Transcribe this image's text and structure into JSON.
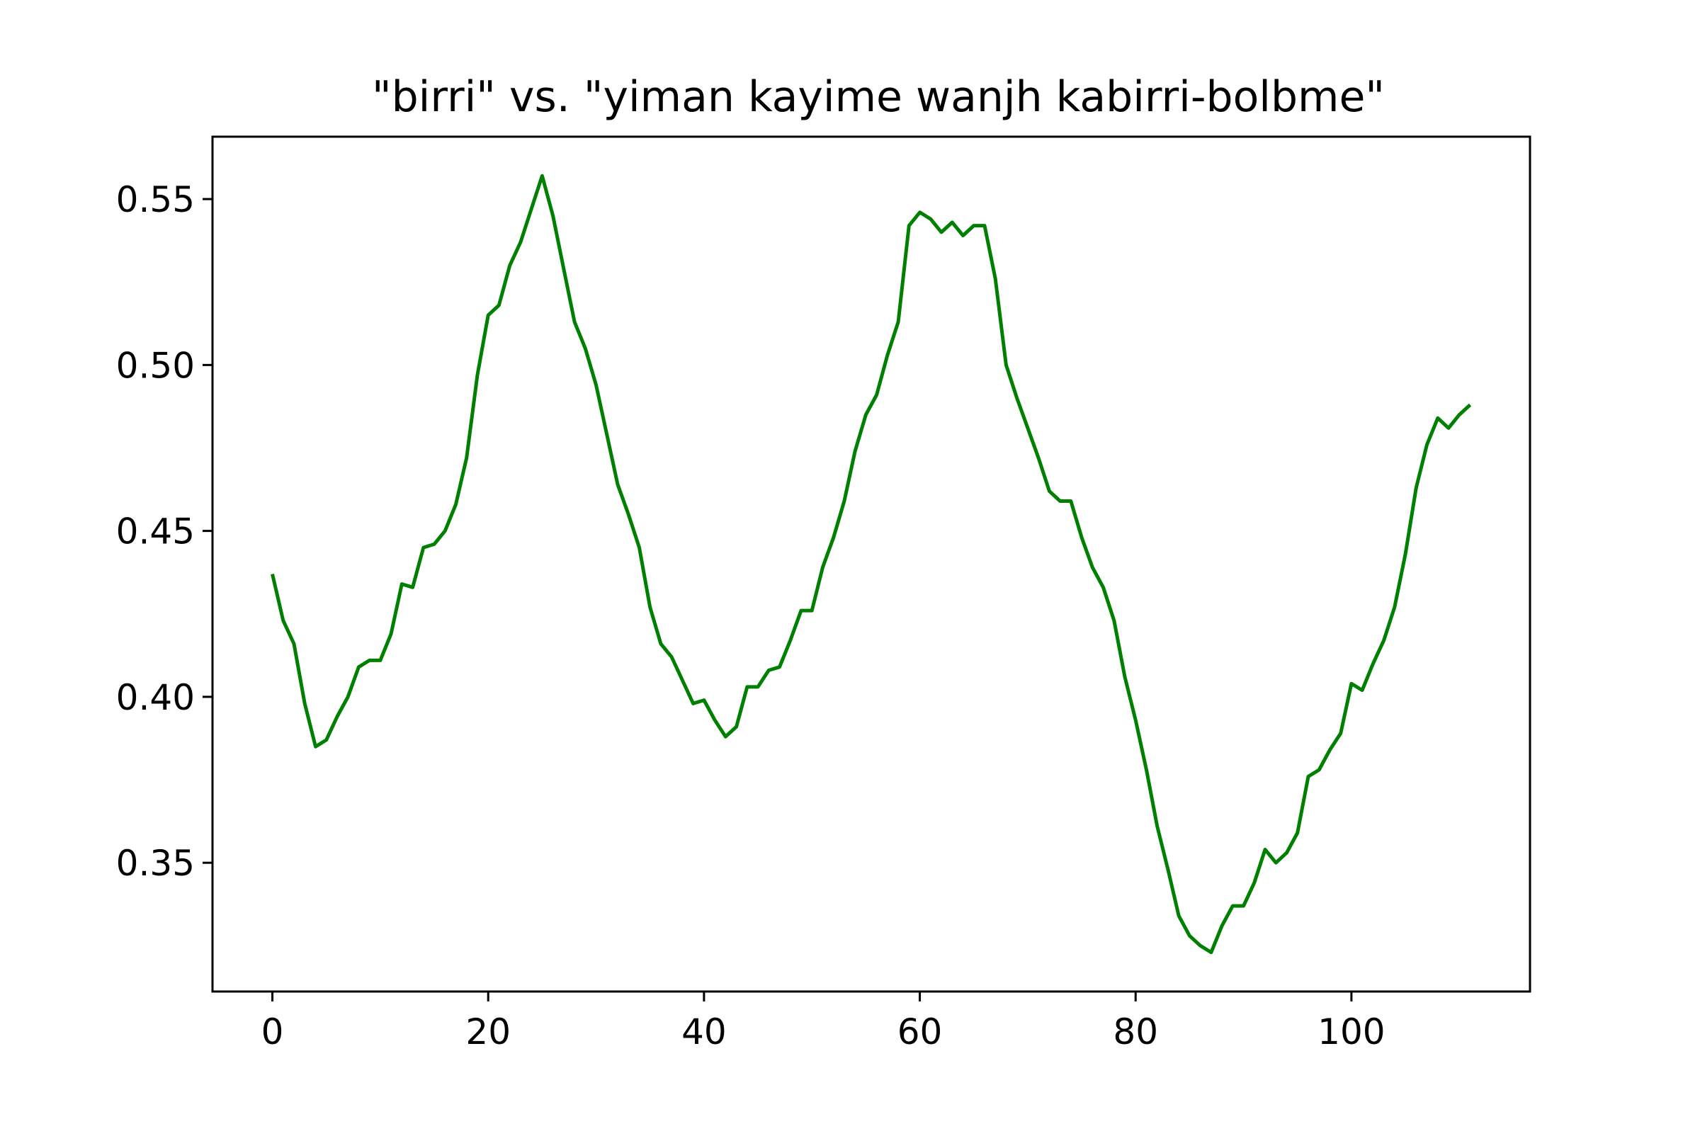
{
  "chart_data": {
    "type": "line",
    "title": "\"birri\" vs. \"yiman kayime wanjh kabirri-bolbme\"",
    "xlabel": "",
    "ylabel": "",
    "xlim": [
      -5.55,
      116.55
    ],
    "ylim": [
      0.3112,
      0.5688
    ],
    "x_ticks": [
      0,
      20,
      40,
      60,
      80,
      100
    ],
    "y_ticks": [
      0.35,
      0.4,
      0.45,
      0.5,
      0.55
    ],
    "x_tick_labels": [
      "0",
      "20",
      "40",
      "60",
      "80",
      "100"
    ],
    "y_tick_labels": [
      "0.35",
      "0.40",
      "0.45",
      "0.50",
      "0.55"
    ],
    "grid": false,
    "legend": "none",
    "series": [
      {
        "color": "#008000",
        "x": [
          0,
          1,
          2,
          3,
          4,
          5,
          6,
          7,
          8,
          9,
          10,
          11,
          12,
          13,
          14,
          15,
          16,
          17,
          18,
          19,
          20,
          21,
          22,
          23,
          24,
          25,
          26,
          27,
          28,
          29,
          30,
          31,
          32,
          33,
          34,
          35,
          36,
          37,
          38,
          39,
          40,
          41,
          42,
          43,
          44,
          45,
          46,
          47,
          48,
          49,
          50,
          51,
          52,
          53,
          54,
          55,
          56,
          57,
          58,
          59,
          60,
          61,
          62,
          63,
          64,
          65,
          66,
          67,
          68,
          69,
          70,
          71,
          72,
          73,
          74,
          75,
          76,
          77,
          78,
          79,
          80,
          81,
          82,
          83,
          84,
          85,
          86,
          87,
          88,
          89,
          90,
          91,
          92,
          93,
          94,
          95,
          96,
          97,
          98,
          99,
          100,
          101,
          102,
          103,
          104,
          105,
          106,
          107,
          108,
          109,
          110,
          111
        ],
        "values": [
          0.437,
          0.423,
          0.416,
          0.398,
          0.385,
          0.387,
          0.394,
          0.4,
          0.409,
          0.411,
          0.411,
          0.419,
          0.434,
          0.433,
          0.445,
          0.446,
          0.45,
          0.458,
          0.472,
          0.497,
          0.515,
          0.518,
          0.53,
          0.537,
          0.547,
          0.557,
          0.545,
          0.529,
          0.513,
          0.505,
          0.494,
          0.479,
          0.464,
          0.455,
          0.445,
          0.427,
          0.416,
          0.412,
          0.405,
          0.398,
          0.399,
          0.393,
          0.388,
          0.391,
          0.403,
          0.403,
          0.408,
          0.409,
          0.417,
          0.426,
          0.426,
          0.439,
          0.448,
          0.459,
          0.474,
          0.485,
          0.491,
          0.503,
          0.513,
          0.542,
          0.546,
          0.544,
          0.54,
          0.543,
          0.539,
          0.542,
          0.542,
          0.526,
          0.5,
          0.49,
          0.481,
          0.472,
          0.462,
          0.459,
          0.459,
          0.448,
          0.439,
          0.433,
          0.423,
          0.406,
          0.393,
          0.378,
          0.361,
          0.348,
          0.334,
          0.328,
          0.325,
          0.323,
          0.331,
          0.337,
          0.337,
          0.344,
          0.354,
          0.35,
          0.353,
          0.359,
          0.376,
          0.378,
          0.384,
          0.389,
          0.404,
          0.402,
          0.41,
          0.417,
          0.427,
          0.443,
          0.463,
          0.476,
          0.484,
          0.481,
          0.485,
          0.488
        ]
      }
    ]
  }
}
